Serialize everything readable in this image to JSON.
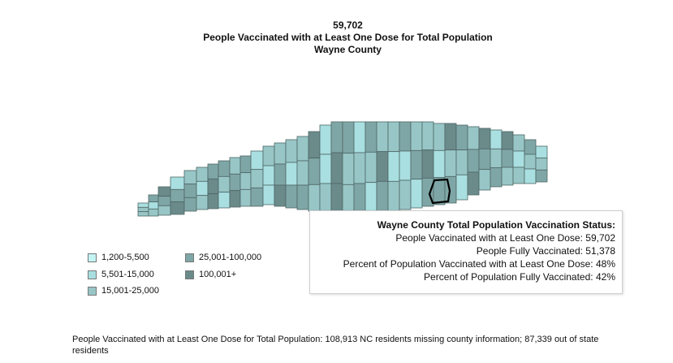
{
  "header": {
    "value": "59,702",
    "subtitle": "People Vaccinated with at Least One Dose for Total Population",
    "county": "Wayne County"
  },
  "map": {
    "state": "North Carolina",
    "selected_county": "Wayne",
    "colors": {
      "bin1": "#c4f4f4",
      "bin2": "#a9dfe0",
      "bin3": "#98c6c6",
      "bin4": "#7fa6a6",
      "bin5": "#6b8a8a",
      "border": "#4f6666",
      "highlight": "#000000"
    }
  },
  "tooltip": {
    "title": "Wayne County Total Population Vaccination Status:",
    "rows": [
      {
        "label": "People Vaccinated with at Least One Dose:",
        "value": "59,702"
      },
      {
        "label": "People Fully Vaccinated:",
        "value": "51,378"
      },
      {
        "label": "Percent of Population Vaccinated with at Least One Dose:",
        "value": "48%"
      },
      {
        "label": "Percent of Population Fully Vaccinated:",
        "value": "42%"
      }
    ]
  },
  "legend": {
    "items": [
      {
        "label": "1,200-5,500",
        "color": "#c4f4f4"
      },
      {
        "label": "5,501-15,000",
        "color": "#a9dfe0"
      },
      {
        "label": "15,001-25,000",
        "color": "#98c6c6"
      },
      {
        "label": "25,001-100,000",
        "color": "#7fa6a6"
      },
      {
        "label": "100,001+",
        "color": "#6b8a8a"
      }
    ]
  },
  "footnote": "People Vaccinated with at Least One Dose for Total Population:  108,913 NC residents missing county information; 87,339 out of state residents"
}
